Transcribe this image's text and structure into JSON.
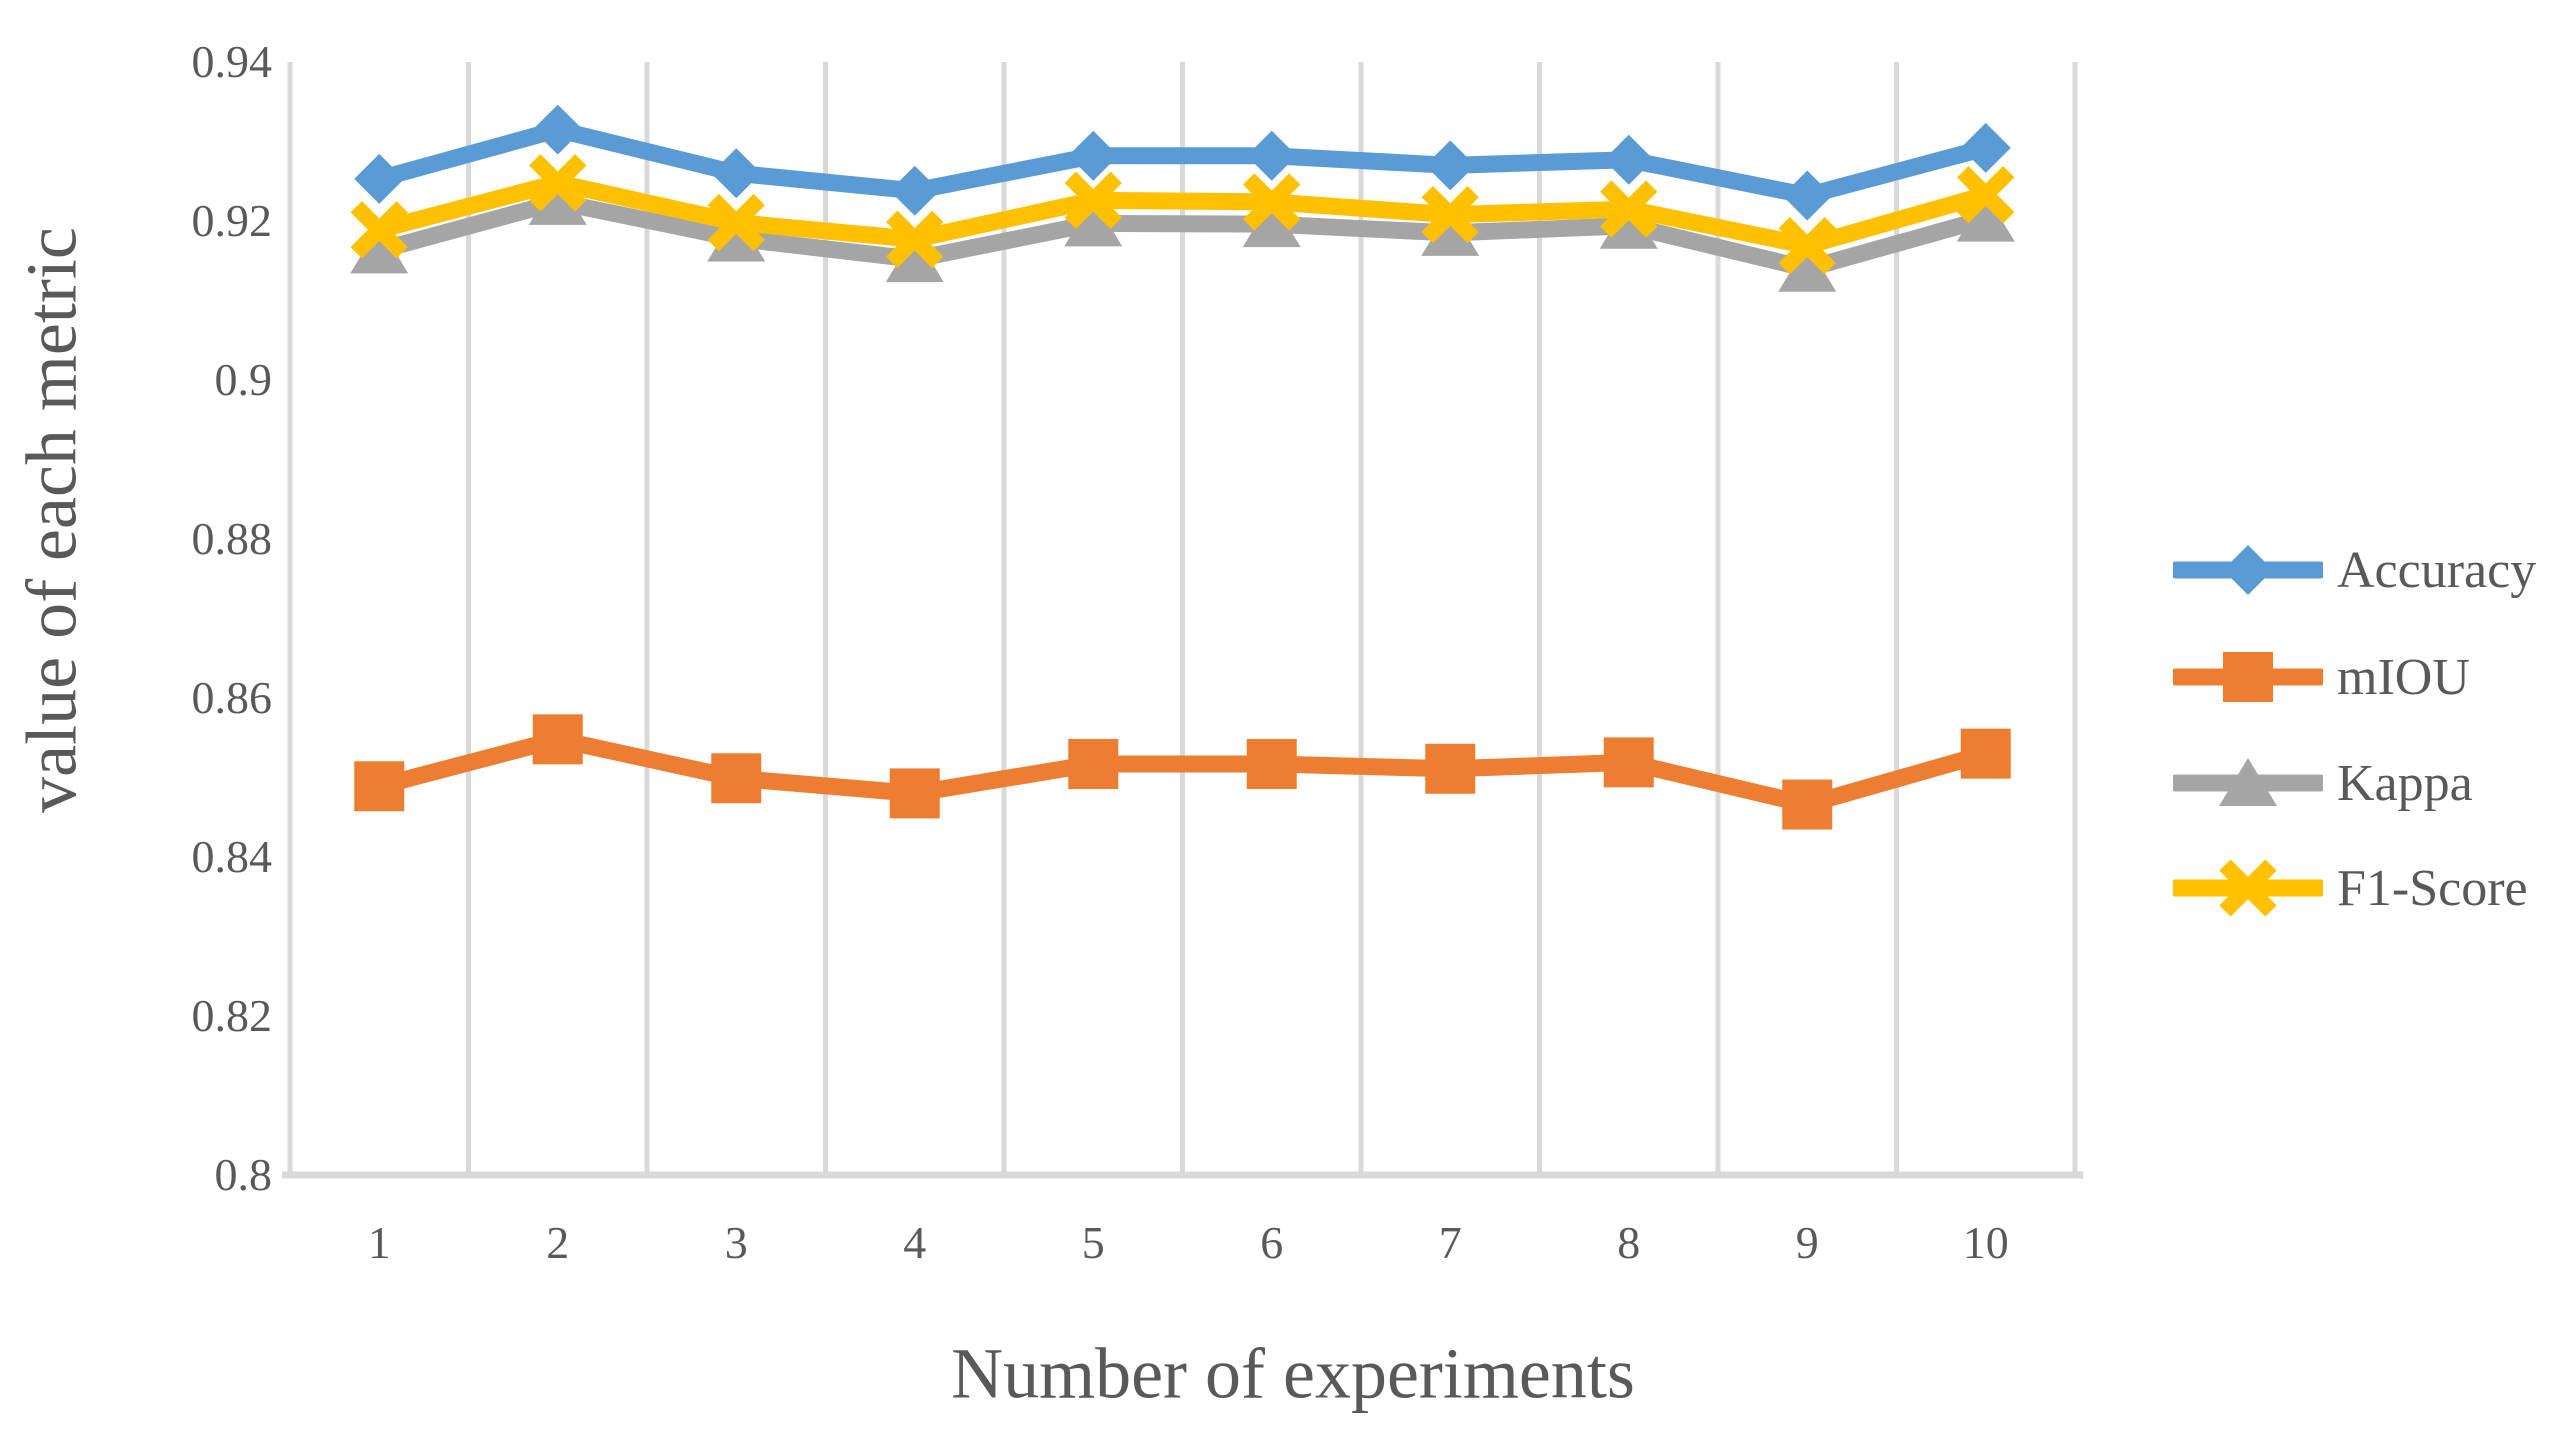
{
  "chart_data": {
    "type": "line",
    "title": "",
    "xlabel": "Number of experiments",
    "ylabel": "value of each metric",
    "categories": [
      "1",
      "2",
      "3",
      "4",
      "5",
      "6",
      "7",
      "8",
      "9",
      "10"
    ],
    "series": [
      {
        "name": "Accuracy",
        "color": "#5B9BD5",
        "marker": "diamond",
        "values": [
          0.9253,
          0.9315,
          0.926,
          0.9238,
          0.9282,
          0.9282,
          0.927,
          0.9277,
          0.9232,
          0.9292
        ]
      },
      {
        "name": "mIOU",
        "color": "#ED7D31",
        "marker": "square",
        "values": [
          0.8489,
          0.8548,
          0.8499,
          0.848,
          0.8517,
          0.8517,
          0.8511,
          0.8519,
          0.8466,
          0.853
        ]
      },
      {
        "name": "Kappa",
        "color": "#A5A5A5",
        "marker": "triangle",
        "values": [
          0.9163,
          0.9224,
          0.9178,
          0.9152,
          0.9197,
          0.9196,
          0.9185,
          0.9194,
          0.914,
          0.9203
        ]
      },
      {
        "name": "F1-Score",
        "color": "#FFC000",
        "marker": "x",
        "values": [
          0.9189,
          0.9248,
          0.9198,
          0.9177,
          0.9226,
          0.9224,
          0.9208,
          0.9215,
          0.9169,
          0.9233
        ]
      }
    ],
    "ylim": [
      0.8,
      0.94
    ],
    "yticks": [
      0.94,
      0.92,
      0.9,
      0.88,
      0.86,
      0.84,
      0.82,
      0.8
    ],
    "ytick_labels": [
      "0.94",
      "0.92",
      "0.9",
      "0.88",
      "0.86",
      "0.84",
      "0.82",
      "0.8"
    ],
    "grid": "vertical-only",
    "legend_position": "right",
    "colors": {
      "text": "#595959",
      "grid": "#D9D9D9",
      "axis": "#D9D9D9",
      "background": "#FFFFFF"
    }
  }
}
